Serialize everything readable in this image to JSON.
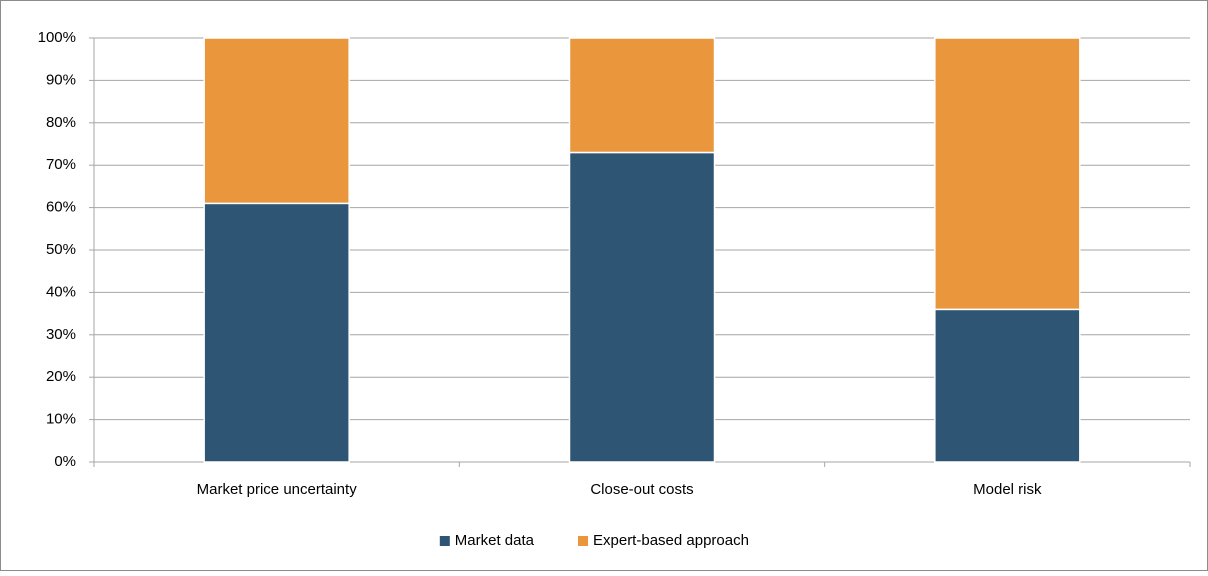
{
  "chart_data": {
    "type": "stacked_bar",
    "categories": [
      "Market price uncertainty",
      "Close-out costs",
      "Model risk"
    ],
    "series": [
      {
        "name": "Market data",
        "color": "#2e5573",
        "values": [
          61,
          73,
          36
        ]
      },
      {
        "name": "Expert-based approach",
        "color": "#ea963c",
        "values": [
          39,
          27,
          64
        ]
      }
    ],
    "ylim": [
      0,
      100
    ],
    "yticks": [
      {
        "value": 0,
        "label": "0%"
      },
      {
        "value": 10,
        "label": "10%"
      },
      {
        "value": 20,
        "label": "20%"
      },
      {
        "value": 30,
        "label": "30%"
      },
      {
        "value": 40,
        "label": "40%"
      },
      {
        "value": 50,
        "label": "50%"
      },
      {
        "value": 60,
        "label": "60%"
      },
      {
        "value": 70,
        "label": "70%"
      },
      {
        "value": 80,
        "label": "80%"
      },
      {
        "value": 90,
        "label": "90%"
      },
      {
        "value": 100,
        "label": "100%"
      }
    ],
    "grid": true,
    "legend": "bottom"
  }
}
